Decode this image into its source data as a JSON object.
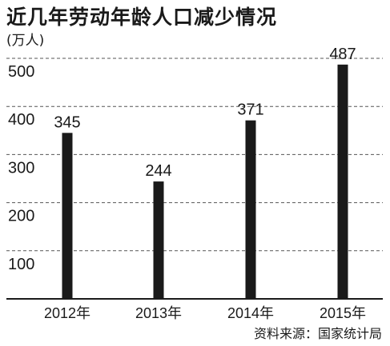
{
  "header": {
    "title": "近几年劳动年龄人口减少情况",
    "unit": "(万人)"
  },
  "footer": {
    "source": "资料来源：国家统计局"
  },
  "chart_data": {
    "type": "bar",
    "title": "近几年劳动年龄人口减少情况",
    "ylabel": "(万人)",
    "xlabel": "",
    "categories": [
      "2012年",
      "2013年",
      "2014年",
      "2015年"
    ],
    "values": [
      345,
      244,
      371,
      487
    ],
    "data_labels": [
      "345",
      "244",
      "371",
      "487"
    ],
    "y_ticks": [
      100,
      200,
      300,
      400,
      500
    ],
    "y_tick_labels": [
      "100",
      "200",
      "300",
      "400",
      "500"
    ],
    "ylim": [
      0,
      500
    ],
    "grid": "horizontal dashed",
    "legend": "none",
    "colors": {
      "bar": "#1a1a1a",
      "grid": "#555555",
      "text": "#1a1a1a"
    }
  }
}
